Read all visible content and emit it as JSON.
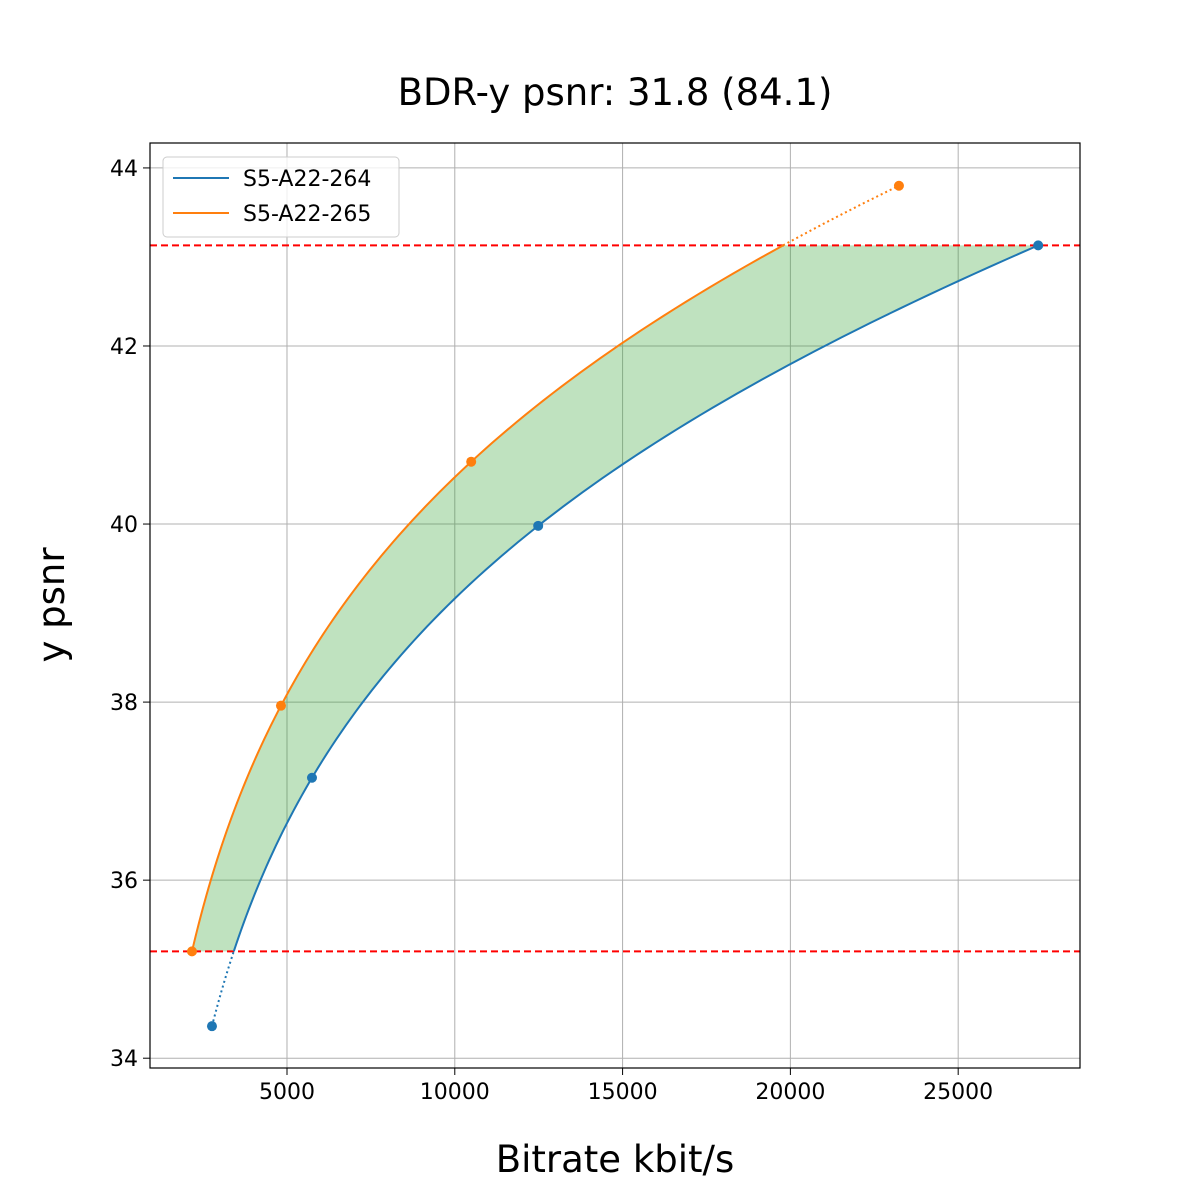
{
  "chart_data": {
    "type": "line",
    "title": "BDR-y psnr: 31.8 (84.1)",
    "xlabel": "Bitrate kbit/s",
    "ylabel": "y psnr",
    "xlim": [
      918,
      28630
    ],
    "ylim": [
      33.89,
      44.28
    ],
    "xticks": [
      5000,
      10000,
      15000,
      20000,
      25000
    ],
    "yticks": [
      34,
      36,
      38,
      40,
      42,
      44
    ],
    "grid": true,
    "legend_position": "top-left",
    "series": [
      {
        "name": "S5-A22-264",
        "color": "#1f77b4",
        "x": [
          2765,
          5745,
          12485,
          27384
        ],
        "y": [
          34.36,
          37.15,
          39.98,
          43.13
        ]
      },
      {
        "name": "S5-A22-265",
        "color": "#ff7f0e",
        "x": [
          2169,
          4821,
          10489,
          23235
        ],
        "y": [
          35.2,
          37.96,
          40.7,
          43.8
        ]
      }
    ],
    "reference_lines": {
      "y": [
        35.2,
        43.13
      ],
      "color": "#ff0000",
      "style": "dashed"
    },
    "fill_between": {
      "color": "#2ca02c",
      "opacity": 0.3,
      "y_range": [
        35.2,
        43.13
      ]
    }
  }
}
